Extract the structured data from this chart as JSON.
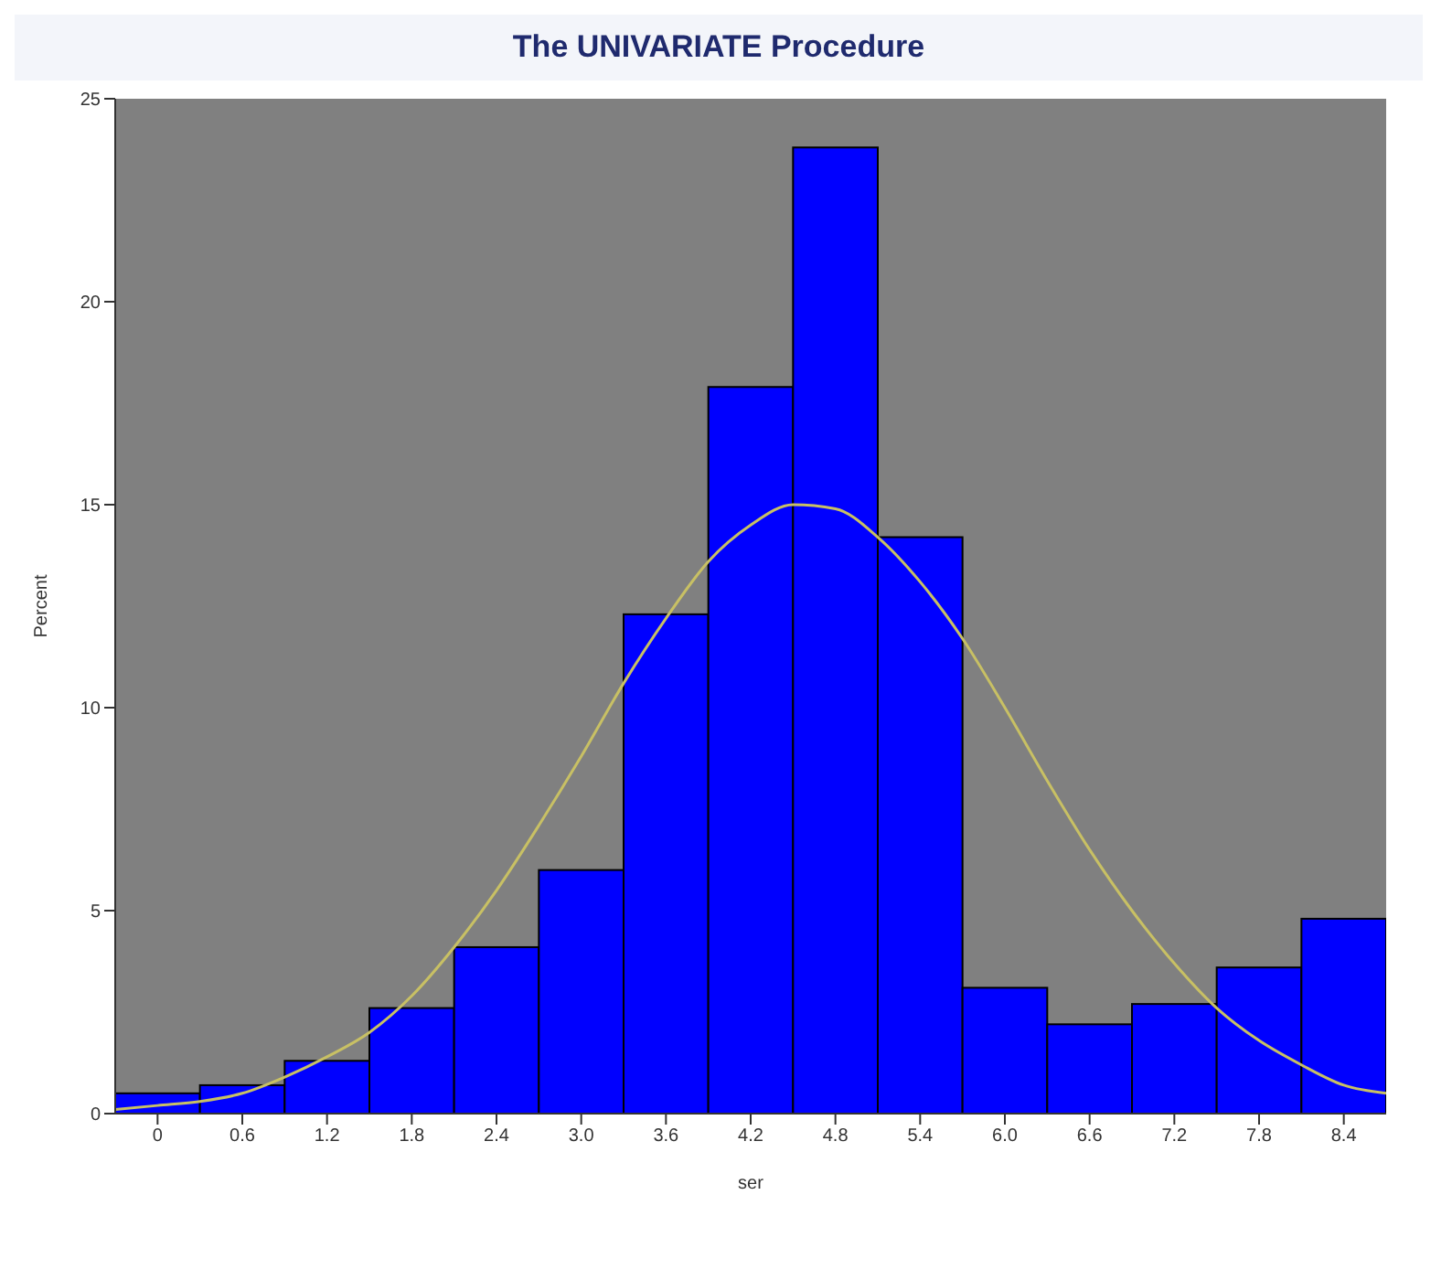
{
  "chart_data": {
    "type": "histogram",
    "title": "The UNIVARIATE Procedure",
    "xlabel": "ser",
    "ylabel": "Percent",
    "bins": [
      -0.3,
      0.3,
      0.9,
      1.5,
      2.1,
      2.7,
      3.3,
      3.9,
      4.5,
      5.1,
      5.7,
      6.3,
      6.9,
      7.5,
      8.1,
      8.7
    ],
    "values": [
      0.5,
      0.7,
      1.3,
      2.6,
      4.1,
      6.0,
      12.3,
      17.9,
      23.8,
      14.2,
      3.1,
      2.2,
      2.7,
      3.6,
      4.8
    ],
    "color": "#0000ff",
    "series": [
      {
        "type": "line",
        "color": "#c8c064",
        "x": [
          -0.3,
          0,
          0.3,
          0.6,
          0.9,
          1.2,
          1.5,
          1.8,
          2.1,
          2.4,
          2.7,
          3,
          3.3,
          3.6,
          3.9,
          4.2,
          4.5,
          4.8,
          5.1,
          5.4,
          5.7,
          6,
          6.3,
          6.6,
          6.9,
          7.2,
          7.5,
          7.8,
          8.1,
          8.4,
          8.7
        ],
        "values": [
          0.1,
          0.2,
          0.3,
          0.5,
          0.9,
          1.4,
          2.0,
          2.9,
          4.1,
          5.5,
          7.1,
          8.8,
          10.6,
          12.2,
          13.6,
          14.5,
          15.0,
          14.9,
          14.2,
          13.1,
          11.7,
          10.0,
          8.2,
          6.5,
          5.0,
          3.7,
          2.6,
          1.8,
          1.2,
          0.7,
          0.5
        ]
      }
    ],
    "xlim": [
      -0.3,
      8.7
    ],
    "ylim": [
      0,
      25
    ],
    "xticks": [
      0,
      0.6,
      1.2,
      1.8,
      2.4,
      {
        "value": 3,
        "label": "3.0"
      },
      3.6,
      4.2,
      4.8,
      5.4,
      {
        "value": 6,
        "label": "6.0"
      },
      6.6,
      7.2,
      7.8,
      8.4
    ],
    "yticks": [
      0,
      5,
      10,
      15,
      20,
      25
    ],
    "grid": false,
    "legend": false
  }
}
